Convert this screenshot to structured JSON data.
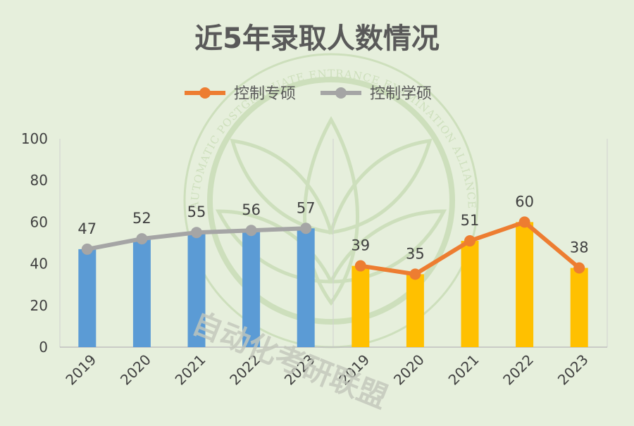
{
  "title": "近5年录取人数情况",
  "legend": [
    {
      "label": "控制专硕",
      "color": "#ed7d31"
    },
    {
      "label": "控制学硕",
      "color": "#a5a5a5"
    }
  ],
  "watermark": {
    "ring_text": "AUTOMATIC POSTGRADUATE ENTRANCE EXAMINATION ALLIANCE",
    "chinese_text": "自动化考研联盟"
  },
  "chart_data": {
    "type": "bar",
    "ylim": [
      0,
      100
    ],
    "yticks": [
      "0",
      "20",
      "40",
      "60",
      "80",
      "100"
    ],
    "groups": [
      {
        "series": "控制学硕",
        "bar_color": "#5b9bd5",
        "line_color": "#a5a5a5",
        "categories": [
          "2019",
          "2020",
          "2021",
          "2022",
          "2023"
        ],
        "values": [
          47,
          52,
          55,
          56,
          57
        ]
      },
      {
        "series": "控制专硕",
        "bar_color": "#ffc000",
        "line_color": "#ed7d31",
        "categories": [
          "2019",
          "2020",
          "2021",
          "2022",
          "2023"
        ],
        "values": [
          39,
          35,
          51,
          60,
          38
        ]
      }
    ],
    "grid": false,
    "legend_position": "top"
  }
}
